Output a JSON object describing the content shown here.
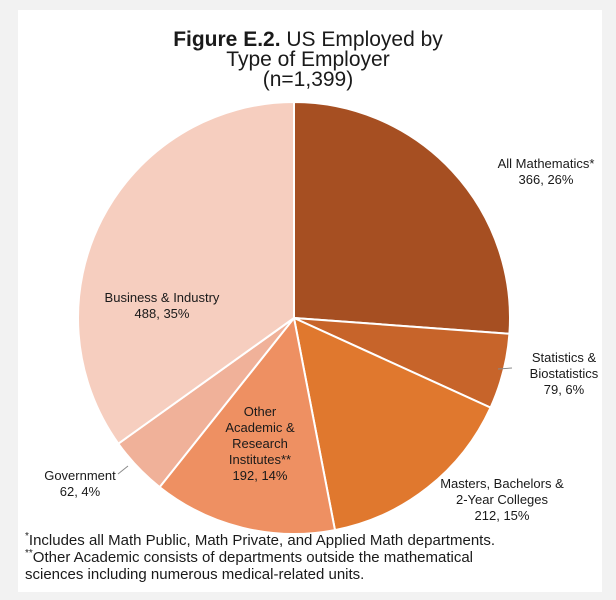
{
  "title": {
    "figure_label": "Figure E.2.",
    "text_line1": "US Employed by",
    "text_line2": "Type of Employer",
    "subtitle": "(n=1,399)"
  },
  "chart_data": {
    "type": "pie",
    "title": "Figure E.2. US Employed by Type of Employer",
    "subtitle": "(n=1,399)",
    "slices": [
      {
        "name": "All Mathematics*",
        "value": 366,
        "percent": "26%",
        "color": "#a64f22",
        "lines": [
          "All Mathematics*",
          "366, 26%"
        ]
      },
      {
        "name": "Statistics & Biostatistics",
        "value": 79,
        "percent": "6%",
        "color": "#c7642a",
        "lines": [
          "Statistics &",
          "Biostatistics",
          "79, 6%"
        ]
      },
      {
        "name": "Masters, Bachelors & 2-Year Colleges",
        "value": 212,
        "percent": "15%",
        "color": "#e0782e",
        "lines": [
          "Masters, Bachelors &",
          "2-Year Colleges",
          "212, 15%"
        ]
      },
      {
        "name": "Other Academic & Research Institutes**",
        "value": 192,
        "percent": "14%",
        "color": "#ee9062",
        "lines": [
          "Other",
          "Academic &",
          "Research",
          "Institutes**",
          "192, 14%"
        ]
      },
      {
        "name": "Government",
        "value": 62,
        "percent": "4%",
        "color": "#f0b199",
        "lines": [
          "Government",
          "62, 4%"
        ]
      },
      {
        "name": "Business & Industry",
        "value": 488,
        "percent": "35%",
        "color": "#f6cebf",
        "lines": [
          "Business & Industry",
          "488, 35%"
        ]
      }
    ]
  },
  "footnotes": [
    {
      "marker": "*",
      "lines": [
        "Includes all Math Public, Math Private, and Applied Math departments."
      ]
    },
    {
      "marker": "**",
      "lines": [
        "Other Academic consists of departments outside the mathematical",
        "sciences including numerous medical-related units."
      ]
    }
  ]
}
